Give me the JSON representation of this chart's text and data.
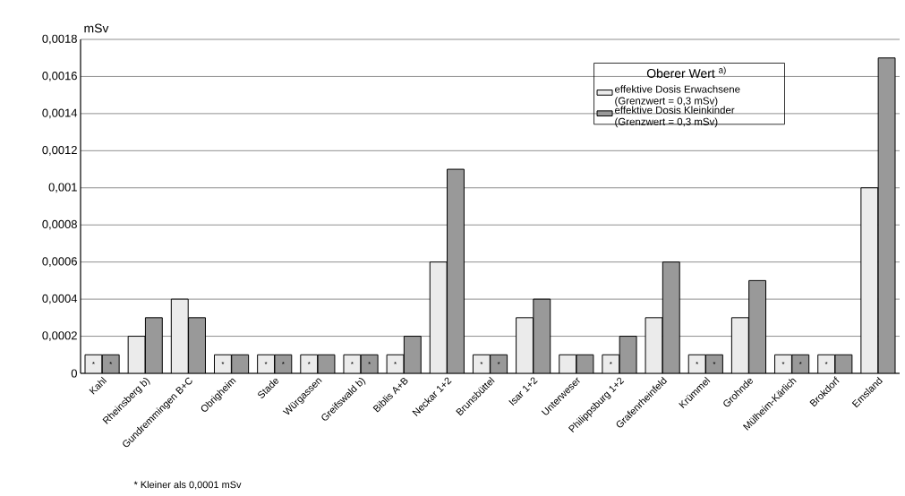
{
  "chart_data": {
    "type": "bar",
    "ylabel": "mSv",
    "legend_title": "Oberer Wert $^{a)}$",
    "legend": "top right",
    "grid": "y",
    "categories": [
      "Kahl",
      "Rheinsberg b)",
      "Gundremmingen B+C",
      "Obrigheim",
      "Stade",
      "Würgassen",
      "Greifswald b)",
      "Biblis A+B",
      "Neckar 1+2",
      "Brunsbüttel",
      "Isar 1+2",
      "Unterweser",
      "Philippsburg 1+2",
      "Grafenrheinfeld",
      "Krümmel",
      "Grohnde",
      "Mülheim-Kärlich",
      "Brokdorf",
      "Emsland"
    ],
    "ylim": [
      0,
      0.0018
    ],
    "yticks": [
      0,
      {
        "value": 0.0002,
        "label": "0,0002"
      },
      {
        "value": 0.0004,
        "label": "0,0004"
      },
      {
        "value": 0.0006,
        "label": "0,0006"
      },
      {
        "value": 0.0008,
        "label": "0,0008"
      },
      {
        "value": 0.001,
        "label": "0,001"
      },
      {
        "value": 0.0012,
        "label": "0,0012"
      },
      {
        "value": 0.0014,
        "label": "0,0014"
      },
      {
        "value": 0.0016,
        "label": "0,0016"
      },
      {
        "value": 0.0018,
        "label": "0,0018"
      }
    ],
    "series": [
      {
        "name": "effektive Dosis Erwachsene (Grenzwert = 0,3 mSv)",
        "color": "#ebebeb",
        "values": [
          0.0001,
          0.0002,
          0.0004,
          0.0001,
          0.0001,
          0.0001,
          0.0001,
          0.0001,
          0.0006,
          0.0001,
          0.0003,
          0.0001,
          0.0001,
          0.0003,
          0.0001,
          0.0003,
          0.0001,
          0.0001,
          0.001
        ],
        "value_labels": [
          "*",
          null,
          null,
          "*",
          "*",
          "*",
          "*",
          "*",
          null,
          "*",
          null,
          null,
          "*",
          null,
          "*",
          null,
          "*",
          "*",
          null
        ]
      },
      {
        "name": "effektive Dosis Kleinkinder (Grenzwert = 0,3 mSv)",
        "color": "#999999",
        "values": [
          0.0001,
          0.0003,
          0.0003,
          0.0001,
          0.0001,
          0.0001,
          0.0001,
          0.0002,
          0.0011,
          0.0001,
          0.0004,
          0.0001,
          0.0002,
          0.0006,
          0.0001,
          0.0005,
          0.0001,
          0.0001,
          0.0017
        ],
        "value_labels": [
          "*",
          null,
          null,
          null,
          "*",
          null,
          "*",
          null,
          null,
          "*",
          null,
          null,
          null,
          null,
          "*",
          null,
          "*",
          null,
          null
        ]
      }
    ],
    "annotations": [
      "* Kleiner als 0,0001 mSv"
    ]
  }
}
